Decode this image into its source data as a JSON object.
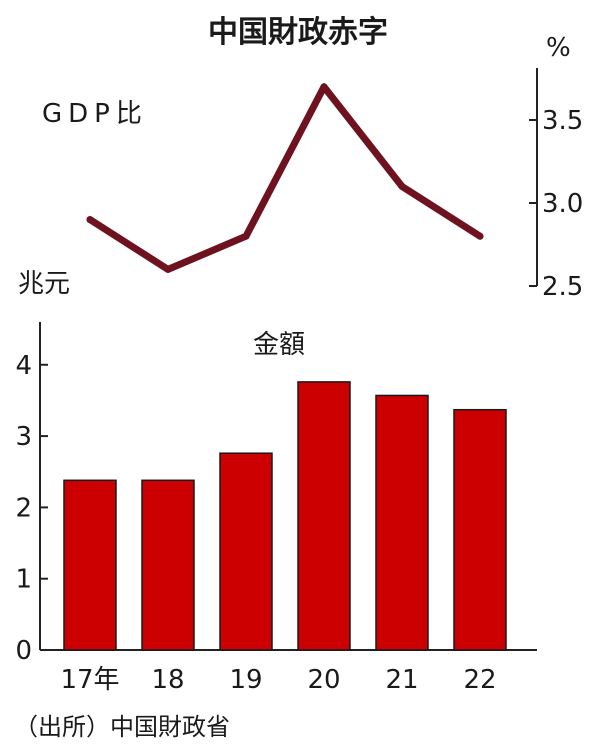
{
  "chart_data": [
    {
      "type": "line",
      "title": "中国財政赤字",
      "series_label": "GDP比",
      "unit": "%",
      "x": [
        "17年",
        "18",
        "19",
        "20",
        "21",
        "22"
      ],
      "values": [
        2.9,
        2.6,
        2.8,
        3.7,
        3.1,
        2.8
      ],
      "ylim": [
        2.5,
        3.8
      ],
      "yticks": [
        "3.5",
        "3.0",
        "2.5"
      ],
      "axis_side": "right",
      "color": "#6e1220"
    },
    {
      "type": "bar",
      "series_label": "金額",
      "unit": "兆元",
      "categories": [
        "17年",
        "18",
        "19",
        "20",
        "21",
        "22"
      ],
      "values": [
        2.38,
        2.38,
        2.76,
        3.76,
        3.57,
        3.37
      ],
      "ylim": [
        0,
        4.6
      ],
      "yticks": [
        "0",
        "1",
        "2",
        "3",
        "4"
      ],
      "axis_side": "left",
      "color": "#cc0000"
    }
  ],
  "source": "（出所）中国財政省"
}
